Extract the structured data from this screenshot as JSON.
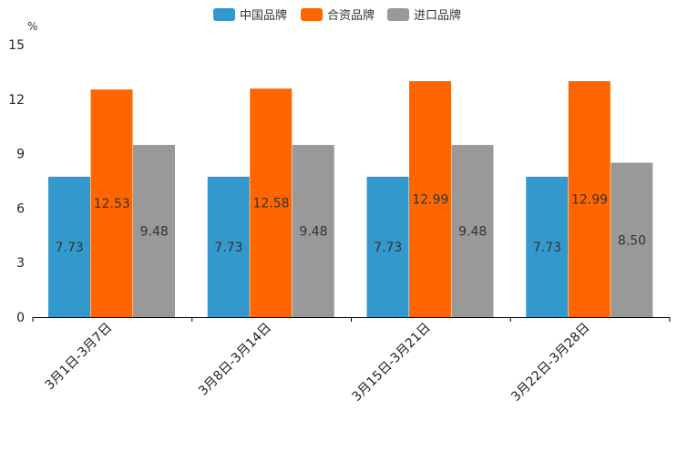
{
  "chart_data": {
    "type": "bar",
    "title": "",
    "ylabel": "%",
    "xlabel": "",
    "ylim": [
      0,
      15
    ],
    "yticks": [
      "0",
      "3",
      "6",
      "9",
      "12",
      "15"
    ],
    "categories": [
      "3月1日-3月7日",
      "3月8日-3月14日",
      "3月15日-3月21日",
      "3月22日-3月28日"
    ],
    "series": [
      {
        "name": "中国品牌",
        "color": "#3399cc",
        "values": [
          7.73,
          7.73,
          7.73,
          7.73
        ],
        "labels": [
          "7.73",
          "7.73",
          "7.73",
          "7.73"
        ]
      },
      {
        "name": "合资品牌",
        "color": "#ff6600",
        "values": [
          12.53,
          12.58,
          12.99,
          12.99
        ],
        "labels": [
          "12.53",
          "12.58",
          "12.99",
          "12.99"
        ]
      },
      {
        "name": "进口品牌",
        "color": "#999999",
        "values": [
          9.48,
          9.48,
          9.48,
          8.5
        ],
        "labels": [
          "9.48",
          "9.48",
          "9.48",
          "8.50"
        ]
      }
    ],
    "legend_position": "top-center",
    "grid": false
  }
}
